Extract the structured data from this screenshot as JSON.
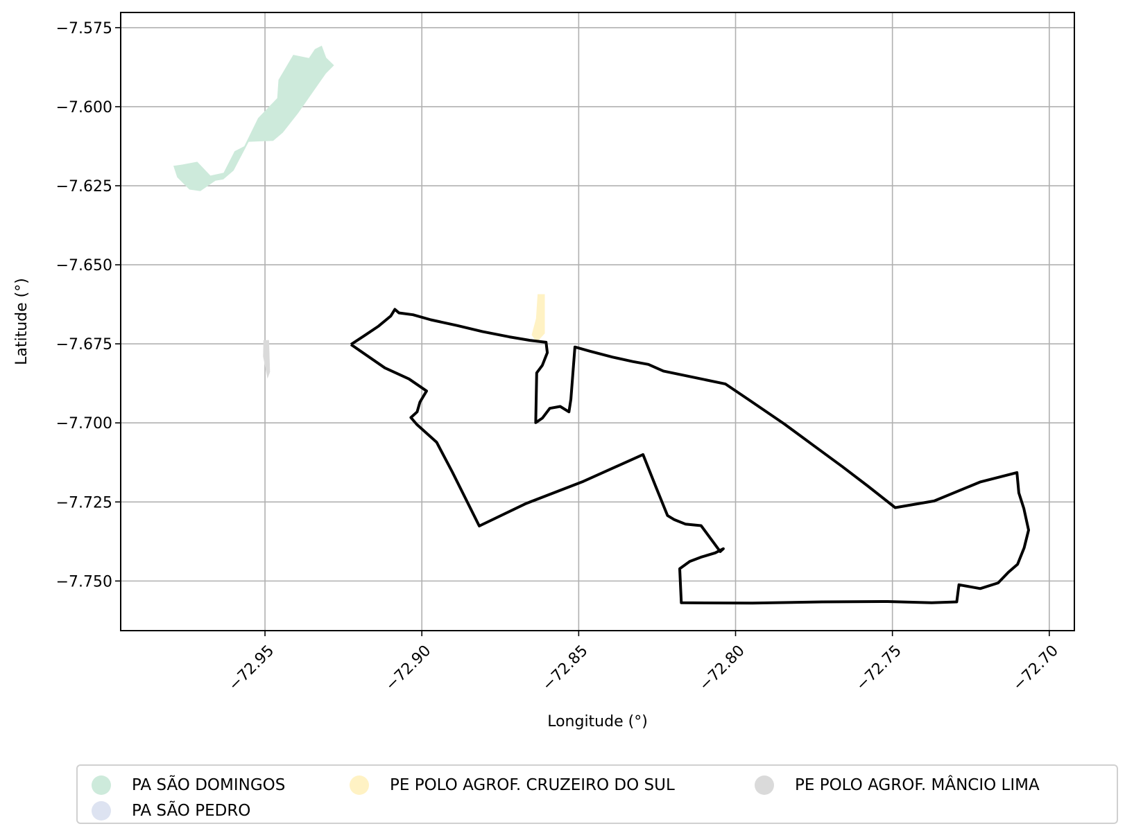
{
  "map": {
    "xlabel": "Longitude (°)",
    "ylabel": "Latitude (°)",
    "xlim": [
      -72.996,
      -72.692
    ],
    "ylim": [
      -7.7657,
      -7.5702
    ],
    "grid": true,
    "x_ticks": [
      -72.95,
      -72.9,
      -72.85,
      -72.8,
      -72.75,
      -72.7
    ],
    "x_tick_labels": [
      "−72.95",
      "−72.90",
      "−72.85",
      "−72.80",
      "−72.75",
      "−72.70"
    ],
    "y_ticks": [
      -7.575,
      -7.6,
      -7.625,
      -7.65,
      -7.675,
      -7.7,
      -7.725,
      -7.75
    ],
    "y_tick_labels": [
      "−7.575",
      "−7.600",
      "−7.625",
      "−7.650",
      "−7.675",
      "−7.700",
      "−7.725",
      "−7.750"
    ],
    "legend": {
      "placement": "below-plot",
      "items": [
        {
          "label": "PA SÃO DOMINGOS",
          "color": "#cdeadb"
        },
        {
          "label": "PE POLO AGROF. CRUZEIRO DO SUL",
          "color": "#fff2c4"
        },
        {
          "label": "PE POLO AGROF. MÂNCIO LIMA",
          "color": "#dadada"
        },
        {
          "label": "PA SÃO PEDRO",
          "color": "#dde3f1"
        }
      ]
    },
    "boundary_color": "#000000"
  },
  "chart_data": {
    "type": "map",
    "xlabel": "Longitude (°)",
    "ylabel": "Latitude (°)",
    "xlim": [
      -72.996,
      -72.692
    ],
    "ylim": [
      -7.7657,
      -7.5702
    ],
    "areas": [
      {
        "name": "PA SÃO DOMINGOS",
        "color": "#cdeadb",
        "coords": [
          [
            -72.9764,
            -7.6183
          ],
          [
            -72.9716,
            -7.6174
          ],
          [
            -72.9674,
            -7.6218
          ],
          [
            -72.9632,
            -7.6209
          ],
          [
            -72.9597,
            -7.6141
          ],
          [
            -72.9566,
            -7.6125
          ],
          [
            -72.9522,
            -7.6036
          ],
          [
            -72.9461,
            -7.5973
          ],
          [
            -72.9457,
            -7.5915
          ],
          [
            -72.941,
            -7.5836
          ],
          [
            -72.936,
            -7.5846
          ],
          [
            -72.9341,
            -7.5818
          ],
          [
            -72.9319,
            -7.5807
          ],
          [
            -72.9305,
            -7.5845
          ],
          [
            -72.928,
            -7.5869
          ],
          [
            -72.9306,
            -7.5895
          ],
          [
            -72.9394,
            -7.602
          ],
          [
            -72.9443,
            -7.6082
          ],
          [
            -72.9474,
            -7.6108
          ],
          [
            -72.9552,
            -7.6111
          ],
          [
            -72.96,
            -7.6202
          ],
          [
            -72.9633,
            -7.623
          ],
          [
            -72.9658,
            -7.6234
          ],
          [
            -72.9706,
            -7.6267
          ],
          [
            -72.9741,
            -7.6262
          ],
          [
            -72.978,
            -7.6223
          ],
          [
            -72.9792,
            -7.6187
          ]
        ]
      },
      {
        "name": "PE POLO AGROF. CRUZEIRO DO SUL",
        "color": "#fff2c4",
        "coords": [
          [
            -72.8631,
            -7.6593
          ],
          [
            -72.8608,
            -7.6593
          ],
          [
            -72.8608,
            -7.6717
          ],
          [
            -72.8634,
            -7.6745
          ],
          [
            -72.865,
            -7.6722
          ],
          [
            -72.8636,
            -7.667
          ]
        ]
      },
      {
        "name": "PE POLO AGROF. MÂNCIO LIMA",
        "color": "#dadada",
        "coords": [
          [
            -72.9505,
            -7.6738
          ],
          [
            -72.9487,
            -7.6738
          ],
          [
            -72.9484,
            -7.6839
          ],
          [
            -72.9492,
            -7.686
          ],
          [
            -72.9506,
            -7.679
          ]
        ]
      }
    ],
    "boundary": [
      [
        -72.9226,
        -7.6752
      ],
      [
        -72.9183,
        -7.6724
      ],
      [
        -72.9138,
        -7.6694
      ],
      [
        -72.9099,
        -7.6662
      ],
      [
        -72.9086,
        -7.6641
      ],
      [
        -72.9073,
        -7.6652
      ],
      [
        -72.9028,
        -7.6658
      ],
      [
        -72.8971,
        -7.6674
      ],
      [
        -72.8888,
        -7.6692
      ],
      [
        -72.8807,
        -7.6711
      ],
      [
        -72.8721,
        -7.6728
      ],
      [
        -72.8656,
        -7.6739
      ],
      [
        -72.8604,
        -7.6745
      ],
      [
        -72.86,
        -7.6778
      ],
      [
        -72.8616,
        -7.6818
      ],
      [
        -72.8634,
        -7.6842
      ],
      [
        -72.8637,
        -7.6999
      ],
      [
        -72.8616,
        -7.6985
      ],
      [
        -72.8592,
        -7.6954
      ],
      [
        -72.8559,
        -7.6948
      ],
      [
        -72.8531,
        -7.6965
      ],
      [
        -72.8525,
        -7.6925
      ],
      [
        -72.8512,
        -7.676
      ],
      [
        -72.8465,
        -7.6773
      ],
      [
        -72.8392,
        -7.6792
      ],
      [
        -72.8328,
        -7.6806
      ],
      [
        -72.8278,
        -7.6815
      ],
      [
        -72.823,
        -7.6836
      ],
      [
        -72.8118,
        -7.6859
      ],
      [
        -72.8032,
        -7.6877
      ],
      [
        -72.7956,
        -7.6928
      ],
      [
        -72.7845,
        -7.7003
      ],
      [
        -72.7756,
        -7.7068
      ],
      [
        -72.766,
        -7.7138
      ],
      [
        -72.7578,
        -7.72
      ],
      [
        -72.7491,
        -7.7268
      ],
      [
        -72.7367,
        -7.7247
      ],
      [
        -72.7221,
        -7.7187
      ],
      [
        -72.7103,
        -7.7157
      ],
      [
        -72.7097,
        -7.7221
      ],
      [
        -72.7081,
        -7.7271
      ],
      [
        -72.7066,
        -7.7339
      ],
      [
        -72.708,
        -7.7395
      ],
      [
        -72.7101,
        -7.7447
      ],
      [
        -72.713,
        -7.7472
      ],
      [
        -72.7163,
        -7.7506
      ],
      [
        -72.722,
        -7.7524
      ],
      [
        -72.7288,
        -7.7512
      ],
      [
        -72.7295,
        -7.7566
      ],
      [
        -72.7375,
        -7.7569
      ],
      [
        -72.7515,
        -7.7565
      ],
      [
        -72.7724,
        -7.7566
      ],
      [
        -72.7946,
        -7.757
      ],
      [
        -72.8173,
        -7.7569
      ],
      [
        -72.8178,
        -7.7461
      ],
      [
        -72.8146,
        -7.7438
      ],
      [
        -72.8111,
        -7.7425
      ],
      [
        -72.8065,
        -7.7411
      ],
      [
        -72.8039,
        -7.7398
      ],
      [
        -72.8049,
        -7.7407
      ],
      [
        -72.811,
        -7.7325
      ],
      [
        -72.816,
        -7.732
      ],
      [
        -72.8195,
        -7.7306
      ],
      [
        -72.8217,
        -7.7293
      ],
      [
        -72.8255,
        -7.72
      ],
      [
        -72.8295,
        -7.71
      ],
      [
        -72.8485,
        -7.7185
      ],
      [
        -72.8668,
        -7.7255
      ],
      [
        -72.8817,
        -7.7326
      ],
      [
        -72.8903,
        -7.7155
      ],
      [
        -72.8953,
        -7.7061
      ],
      [
        -72.9016,
        -7.7005
      ],
      [
        -72.9035,
        -7.6983
      ],
      [
        -72.9015,
        -7.6965
      ],
      [
        -72.9006,
        -7.6934
      ],
      [
        -72.8985,
        -7.6899
      ],
      [
        -72.9041,
        -7.6861
      ],
      [
        -72.9118,
        -7.6826
      ],
      [
        -72.9226,
        -7.6752
      ]
    ]
  }
}
